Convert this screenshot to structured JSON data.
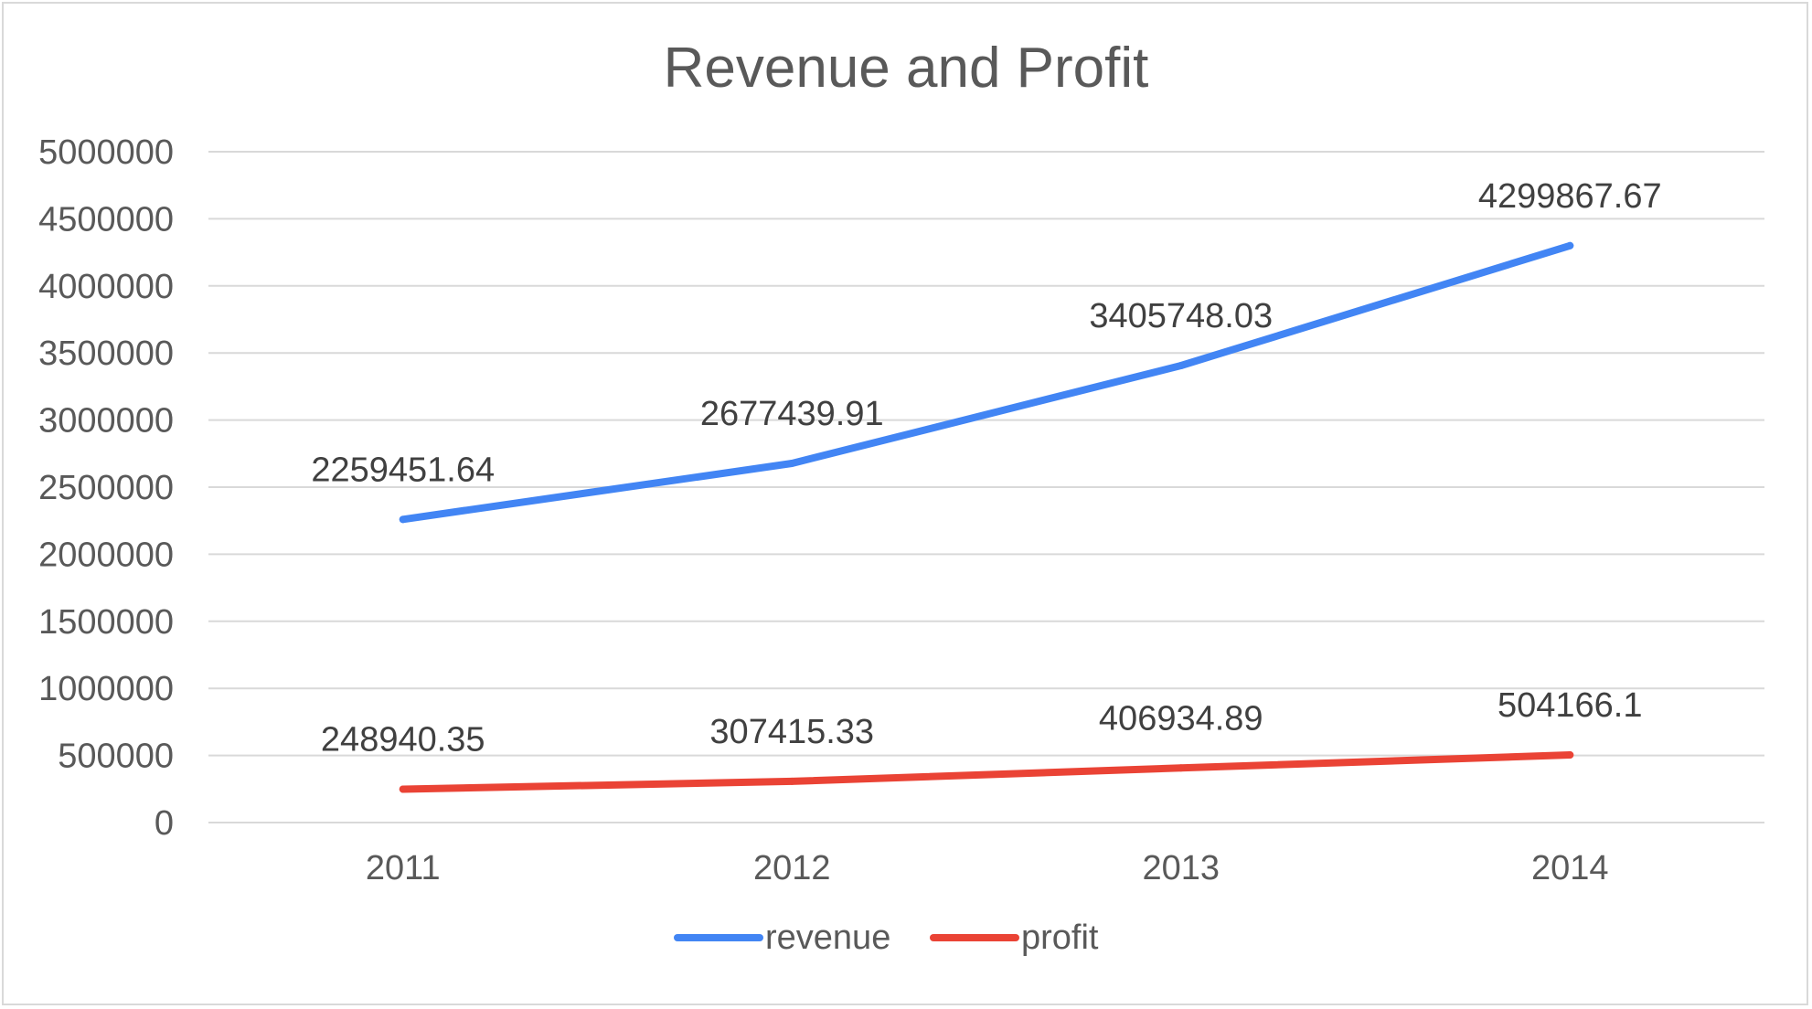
{
  "chart_data": {
    "type": "line",
    "title": "Revenue and Profit",
    "xlabel": "",
    "ylabel": "",
    "categories": [
      "2011",
      "2012",
      "2013",
      "2014"
    ],
    "ylim": [
      0,
      5000000
    ],
    "yticks": [
      0,
      500000,
      1000000,
      1500000,
      2000000,
      2500000,
      3000000,
      3500000,
      4000000,
      4500000,
      5000000
    ],
    "grid": true,
    "legend": "bottom",
    "series": [
      {
        "name": "revenue",
        "color": "#4285f4",
        "values": [
          2259451.64,
          2677439.91,
          3405748.03,
          4299867.67
        ],
        "labels": [
          "2259451.64",
          "2677439.91",
          "3405748.03",
          "4299867.67"
        ]
      },
      {
        "name": "profit",
        "color": "#ea4335",
        "values": [
          248940.35,
          307415.33,
          406934.89,
          504166.1
        ],
        "labels": [
          "248940.35",
          "307415.33",
          "406934.89",
          "504166.1"
        ]
      }
    ]
  }
}
